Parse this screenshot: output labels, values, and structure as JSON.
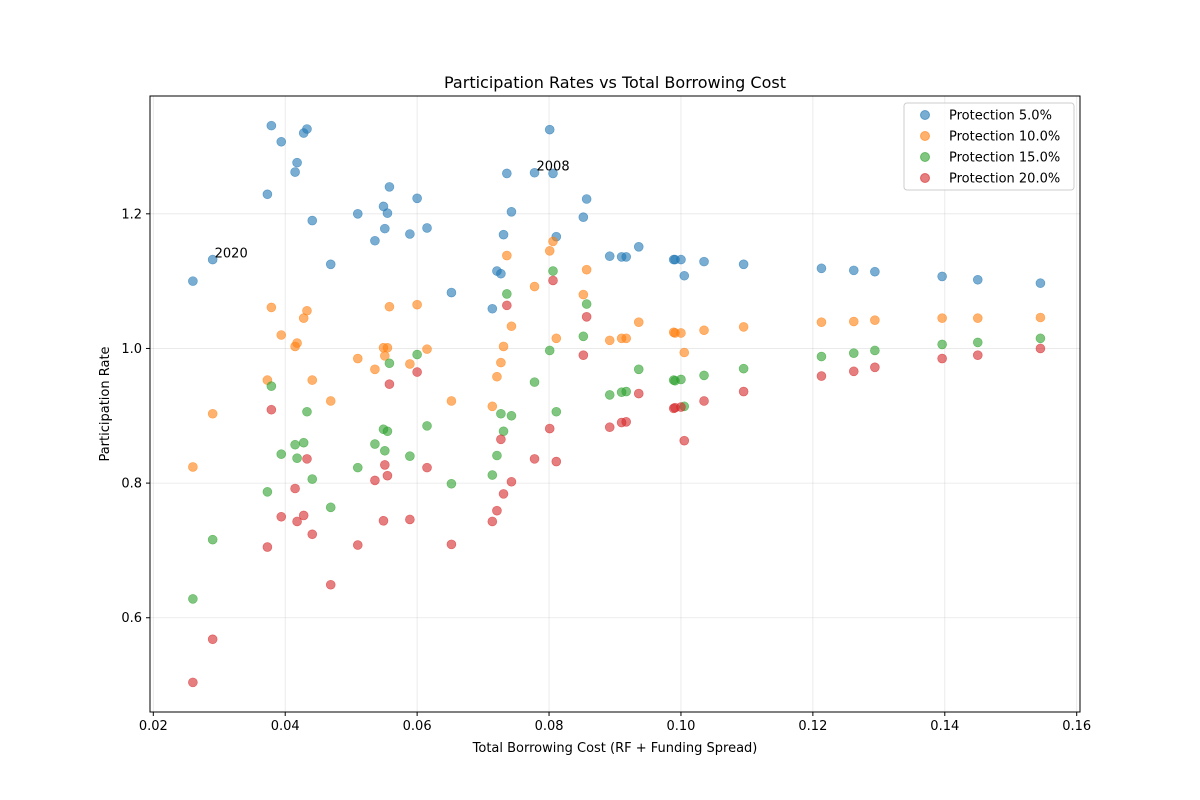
{
  "chart_data": {
    "type": "scatter",
    "title": "Participation Rates vs Total Borrowing Cost",
    "xlabel": "Total Borrowing Cost (RF + Funding Spread)",
    "ylabel": "Participation Rate",
    "xlim": [
      0.0195,
      0.1605
    ],
    "ylim": [
      0.46,
      1.375
    ],
    "xticks": [
      0.02,
      0.04,
      0.06,
      0.08,
      0.1,
      0.12,
      0.14,
      0.16
    ],
    "xtick_labels": [
      "0.02",
      "0.04",
      "0.06",
      "0.08",
      "0.10",
      "0.12",
      "0.14",
      "0.16"
    ],
    "yticks": [
      0.6,
      0.8,
      1.0,
      1.2
    ],
    "ytick_labels": [
      "0.6",
      "0.8",
      "1.0",
      "1.2"
    ],
    "grid": true,
    "legend_position": "top-right",
    "x": [
      0.026,
      0.029,
      0.0373,
      0.0379,
      0.0394,
      0.0415,
      0.0418,
      0.0428,
      0.0433,
      0.0441,
      0.0469,
      0.051,
      0.0536,
      0.0549,
      0.0551,
      0.0555,
      0.0558,
      0.0589,
      0.06,
      0.0615,
      0.0652,
      0.0714,
      0.0721,
      0.0727,
      0.0731,
      0.0736,
      0.0743,
      0.0778,
      0.0801,
      0.0806,
      0.0811,
      0.0852,
      0.0857,
      0.0892,
      0.091,
      0.0917,
      0.0936,
      0.0989,
      0.0991,
      0.1,
      0.1005,
      0.1035,
      0.1095,
      0.1213,
      0.1262,
      0.1294,
      0.1396,
      0.145,
      0.1545
    ],
    "series": [
      {
        "name": "Protection 5.0%",
        "color": "#1f77b4",
        "values": [
          1.1,
          1.132,
          1.229,
          1.331,
          1.307,
          1.262,
          1.276,
          1.32,
          1.326,
          1.19,
          1.125,
          1.2,
          1.16,
          1.211,
          1.178,
          1.201,
          1.24,
          1.17,
          1.223,
          1.179,
          1.083,
          1.059,
          1.115,
          1.111,
          1.169,
          1.26,
          1.203,
          1.261,
          1.325,
          1.26,
          1.166,
          1.195,
          1.222,
          1.137,
          1.136,
          1.136,
          1.151,
          1.132,
          1.132,
          1.132,
          1.108,
          1.129,
          1.125,
          1.119,
          1.116,
          1.114,
          1.107,
          1.102,
          1.097
        ]
      },
      {
        "name": "Protection 10.0%",
        "color": "#ff7f0e",
        "values": [
          0.824,
          0.903,
          0.953,
          1.061,
          1.02,
          1.003,
          1.008,
          1.045,
          1.056,
          0.953,
          0.922,
          0.985,
          0.969,
          1.001,
          0.989,
          1.001,
          1.062,
          0.977,
          1.065,
          0.999,
          0.922,
          0.914,
          0.958,
          0.979,
          1.003,
          1.138,
          1.033,
          1.092,
          1.145,
          1.159,
          1.015,
          1.08,
          1.117,
          1.012,
          1.015,
          1.015,
          1.039,
          1.024,
          1.023,
          1.023,
          0.994,
          1.027,
          1.032,
          1.039,
          1.04,
          1.042,
          1.045,
          1.045,
          1.046
        ]
      },
      {
        "name": "Protection 15.0%",
        "color": "#2ca02c",
        "values": [
          0.628,
          0.716,
          0.787,
          0.944,
          0.843,
          0.857,
          0.837,
          0.86,
          0.906,
          0.806,
          0.764,
          0.823,
          0.858,
          0.88,
          0.848,
          0.877,
          0.978,
          0.84,
          0.991,
          0.885,
          0.799,
          0.812,
          0.841,
          0.903,
          0.877,
          1.081,
          0.9,
          0.95,
          0.997,
          1.115,
          0.906,
          1.018,
          1.066,
          0.931,
          0.935,
          0.936,
          0.969,
          0.953,
          0.952,
          0.954,
          0.914,
          0.96,
          0.97,
          0.988,
          0.993,
          0.997,
          1.006,
          1.009,
          1.015
        ]
      },
      {
        "name": "Protection 20.0%",
        "color": "#d62728",
        "values": [
          0.504,
          0.568,
          0.705,
          0.909,
          0.75,
          0.792,
          0.743,
          0.752,
          0.836,
          0.724,
          0.649,
          0.708,
          0.804,
          0.744,
          0.827,
          0.811,
          0.947,
          0.746,
          0.965,
          0.823,
          0.709,
          0.743,
          0.759,
          0.865,
          0.784,
          1.064,
          0.802,
          0.836,
          0.881,
          1.101,
          0.832,
          0.99,
          1.047,
          0.883,
          0.89,
          0.891,
          0.933,
          0.911,
          0.912,
          0.913,
          0.863,
          0.922,
          0.936,
          0.959,
          0.966,
          0.972,
          0.985,
          0.99,
          1.0
        ]
      }
    ],
    "annotations": [
      {
        "text": "2020",
        "x": 0.0293,
        "y": 1.132
      },
      {
        "text": "2008",
        "x": 0.0781,
        "y": 1.261
      }
    ]
  }
}
